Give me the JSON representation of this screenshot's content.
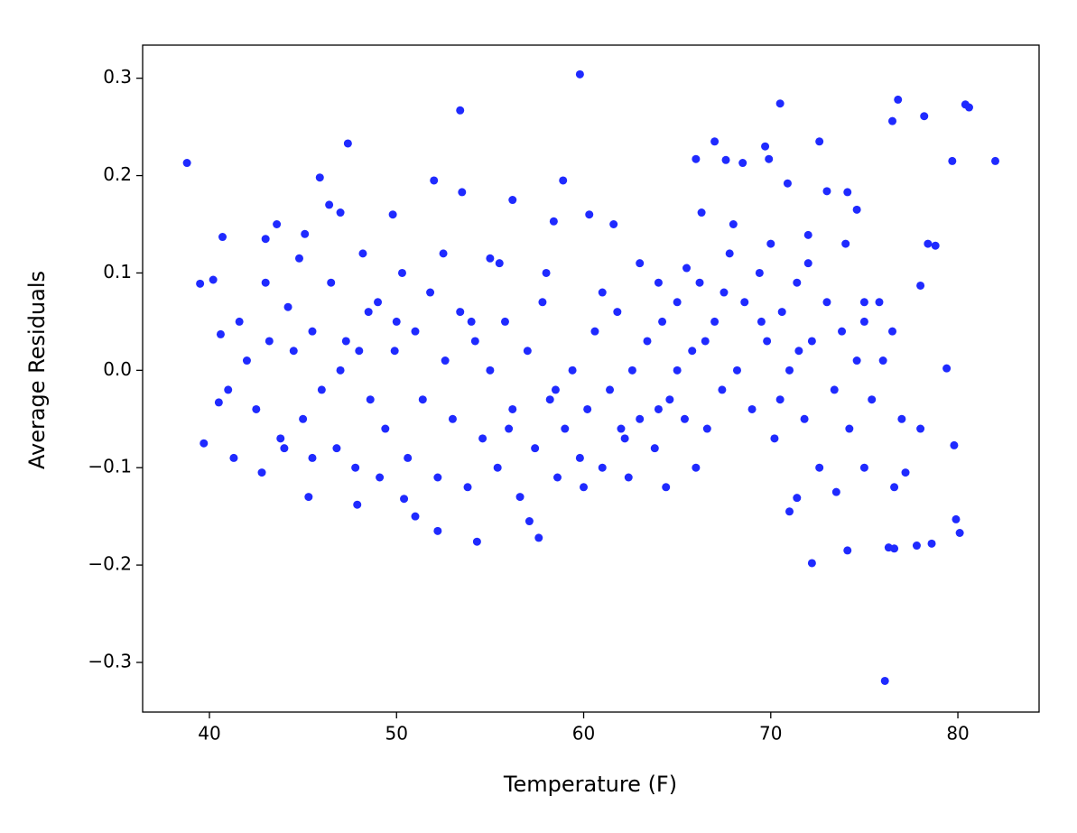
{
  "chart_data": {
    "type": "scatter",
    "x_label": "Temperature (F)",
    "y_label": "Average Residuals",
    "color": "#1f2aff",
    "xlim": [
      36.43,
      84.34
    ],
    "xticks": [
      40,
      50,
      60,
      70,
      80
    ],
    "ylim": [
      -0.351,
      0.334
    ],
    "yticks": [
      {
        "value": -0.3,
        "label": "−0.3"
      },
      {
        "value": -0.2,
        "label": "−0.2"
      },
      {
        "value": -0.1,
        "label": "−0.1"
      },
      {
        "value": 0,
        "label": "0.0"
      },
      0.1,
      0.2,
      0.3
    ],
    "x": [
      38.8,
      39.5,
      39.7,
      40.2,
      40.5,
      40.7,
      40.6,
      41.3,
      41.6,
      42.8,
      43.0,
      43.6,
      44.2,
      44.8,
      45.1,
      45.3,
      45.9,
      46.4,
      47.0,
      47.4,
      47.9,
      48.5,
      49.1,
      49.8,
      50.4,
      51.0,
      52.0,
      52.2,
      53.4,
      53.5,
      54.3,
      55.0,
      56.2,
      57.1,
      57.6,
      58.4,
      58.9,
      59.8,
      60.3,
      61.6,
      62.4,
      63.0,
      64.4,
      65.5,
      66.0,
      66.3,
      67.0,
      67.6,
      68.5,
      69.7,
      69.9,
      70.5,
      70.9,
      71.0,
      71.4,
      72.0,
      72.2,
      72.6,
      73.0,
      73.5,
      74.1,
      74.1,
      74.6,
      75.0,
      75.8,
      76.1,
      76.3,
      76.5,
      76.6,
      76.8,
      77.0,
      77.8,
      78.0,
      78.2,
      78.4,
      78.6,
      78.8,
      79.4,
      79.7,
      79.9,
      80.1,
      80.4,
      80.6,
      82.0,
      79.8,
      77.2,
      76.6,
      78.0,
      42.0,
      42.5,
      43.2,
      43.8,
      44.5,
      45.0,
      45.5,
      46.0,
      46.5,
      46.8,
      47.3,
      47.8,
      48.2,
      48.6,
      49.0,
      49.4,
      49.9,
      50.3,
      50.6,
      51.0,
      51.4,
      51.8,
      52.2,
      52.6,
      53.0,
      53.4,
      53.8,
      54.2,
      54.6,
      55.0,
      55.4,
      55.8,
      56.2,
      56.6,
      57.0,
      57.4,
      57.8,
      58.2,
      58.6,
      59.0,
      59.4,
      59.8,
      60.2,
      60.6,
      61.0,
      61.4,
      61.8,
      62.2,
      62.6,
      63.0,
      63.4,
      63.8,
      64.2,
      64.6,
      65.0,
      65.4,
      65.8,
      66.2,
      66.6,
      67.0,
      67.4,
      67.8,
      68.2,
      68.6,
      69.0,
      69.4,
      69.8,
      70.2,
      70.6,
      71.0,
      71.4,
      71.8,
      72.2,
      72.6,
      73.0,
      73.4,
      73.8,
      74.2,
      74.6,
      75.0,
      75.4,
      76.0,
      76.5,
      43.0,
      44.0,
      47.0,
      50.0,
      52.5,
      55.5,
      58.0,
      61.0,
      64.0,
      66.0,
      68.0,
      70.0,
      72.0,
      74.0,
      75.0,
      56.0,
      60.0,
      62.0,
      64.0,
      58.5,
      54.0,
      48.0,
      45.5,
      41.0,
      67.5,
      69.5,
      71.5,
      70.5,
      66.5,
      65.0
    ],
    "values": [
      0.213,
      0.089,
      -0.075,
      0.093,
      -0.033,
      0.137,
      0.037,
      -0.09,
      0.05,
      -0.105,
      0.135,
      0.15,
      0.065,
      0.115,
      0.14,
      -0.13,
      0.198,
      0.17,
      0.162,
      0.233,
      -0.138,
      0.06,
      -0.11,
      0.16,
      -0.132,
      -0.15,
      0.195,
      -0.165,
      0.267,
      0.183,
      -0.176,
      0.115,
      0.175,
      -0.155,
      -0.172,
      0.153,
      0.195,
      0.304,
      0.16,
      0.15,
      -0.11,
      0.11,
      -0.12,
      0.105,
      0.217,
      0.162,
      0.235,
      0.216,
      0.213,
      0.23,
      0.217,
      0.274,
      0.192,
      -0.145,
      -0.131,
      0.139,
      -0.198,
      0.235,
      0.184,
      -0.125,
      0.183,
      -0.185,
      0.165,
      -0.1,
      0.07,
      -0.319,
      -0.182,
      0.256,
      -0.183,
      0.278,
      -0.05,
      -0.18,
      0.087,
      0.261,
      0.13,
      -0.178,
      0.128,
      0.002,
      0.215,
      -0.153,
      -0.167,
      0.273,
      0.27,
      0.215,
      -0.077,
      -0.105,
      -0.12,
      -0.06,
      0.01,
      -0.04,
      0.03,
      -0.07,
      0.02,
      -0.05,
      0.04,
      -0.02,
      0.09,
      -0.08,
      0.03,
      -0.1,
      0.12,
      -0.03,
      0.07,
      -0.06,
      0.02,
      0.1,
      -0.09,
      0.04,
      -0.03,
      0.08,
      -0.11,
      0.01,
      -0.05,
      0.06,
      -0.12,
      0.03,
      -0.07,
      0.0,
      -0.1,
      0.05,
      -0.04,
      -0.13,
      0.02,
      -0.08,
      0.07,
      -0.03,
      -0.11,
      -0.06,
      0.0,
      -0.09,
      -0.04,
      0.04,
      -0.1,
      -0.02,
      0.06,
      -0.07,
      0.0,
      -0.05,
      0.03,
      -0.08,
      0.05,
      -0.03,
      0.07,
      -0.05,
      0.02,
      0.09,
      -0.06,
      0.05,
      -0.02,
      0.12,
      0.0,
      0.07,
      -0.04,
      0.1,
      0.03,
      -0.07,
      0.06,
      0.0,
      0.09,
      -0.05,
      0.03,
      -0.1,
      0.07,
      -0.02,
      0.04,
      -0.06,
      0.01,
      0.05,
      -0.03,
      0.01,
      0.04,
      0.09,
      -0.08,
      0.0,
      0.05,
      0.12,
      0.11,
      0.1,
      0.08,
      0.09,
      -0.1,
      0.15,
      0.13,
      0.11,
      0.13,
      0.07,
      -0.06,
      -0.12,
      -0.06,
      -0.04,
      -0.02,
      0.05,
      0.02,
      -0.09,
      -0.02,
      0.08,
      0.05,
      0.02,
      -0.03,
      0.03,
      0.0
    ]
  }
}
